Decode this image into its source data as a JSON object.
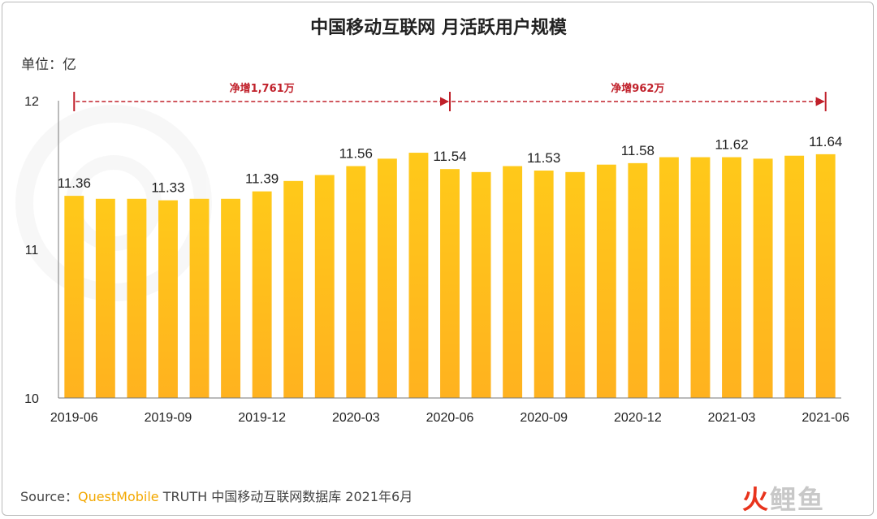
{
  "title": "中国移动互联网 月活跃用户规模",
  "unit_label": "单位：亿",
  "source": {
    "prefix": "Source：",
    "brand": "QuestMobile",
    "rest": " TRUTH 中国移动互联网数据库 2021年6月"
  },
  "watermark": [
    "火",
    "鲤",
    "鱼"
  ],
  "colors": {
    "bar_top": "#ffc91a",
    "bar_bottom": "#ffb21f",
    "annotation": "#c0202a"
  },
  "chart_data": {
    "type": "bar",
    "title": "中国移动互联网 月活跃用户规模",
    "ylabel": "单位：亿",
    "ylim": [
      10,
      12
    ],
    "yticks": [
      "10",
      "11",
      "12"
    ],
    "grid": false,
    "x_tick_labels": [
      "2019-06",
      "2019-09",
      "2019-12",
      "2020-03",
      "2020-06",
      "2020-09",
      "2020-12",
      "2021-03",
      "2021-06"
    ],
    "categories": [
      "2019-06",
      "2019-07",
      "2019-08",
      "2019-09",
      "2019-10",
      "2019-11",
      "2019-12",
      "2020-01",
      "2020-02",
      "2020-03",
      "2020-04",
      "2020-05",
      "2020-06",
      "2020-07",
      "2020-08",
      "2020-09",
      "2020-10",
      "2020-11",
      "2020-12",
      "2021-01",
      "2021-02",
      "2021-03",
      "2021-04",
      "2021-05",
      "2021-06"
    ],
    "values": [
      11.36,
      11.34,
      11.34,
      11.33,
      11.34,
      11.34,
      11.39,
      11.46,
      11.5,
      11.56,
      11.61,
      11.65,
      11.54,
      11.52,
      11.56,
      11.53,
      11.52,
      11.57,
      11.58,
      11.62,
      11.62,
      11.62,
      11.61,
      11.63,
      11.64
    ],
    "data_labels": [
      {
        "category": "2019-06",
        "text": "11.36"
      },
      {
        "category": "2019-09",
        "text": "11.33"
      },
      {
        "category": "2019-12",
        "text": "11.39"
      },
      {
        "category": "2020-03",
        "text": "11.56"
      },
      {
        "category": "2020-06",
        "text": "11.54"
      },
      {
        "category": "2020-09",
        "text": "11.53"
      },
      {
        "category": "2020-12",
        "text": "11.58"
      },
      {
        "category": "2021-03",
        "text": "11.62"
      },
      {
        "category": "2021-06",
        "text": "11.64"
      }
    ],
    "annotations": [
      {
        "from": "2019-06",
        "to": "2020-06",
        "text": "净增1,761万"
      },
      {
        "from": "2020-06",
        "to": "2021-06",
        "text": "净增962万"
      }
    ]
  }
}
